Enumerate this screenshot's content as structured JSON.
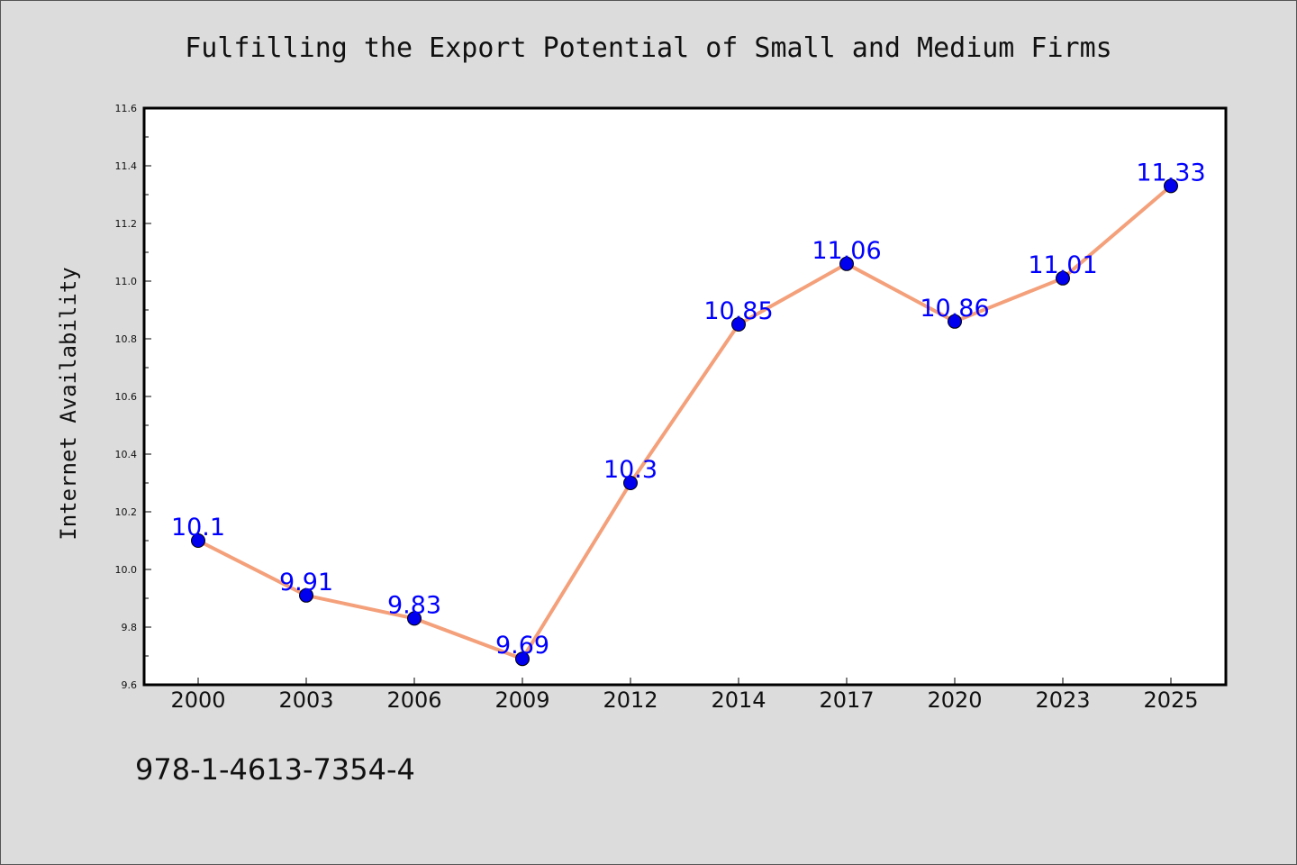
{
  "chart_data": {
    "type": "line",
    "title": "Fulfilling the Export Potential of Small and Medium Firms",
    "ylabel": "Internet Availability",
    "xlabel": "",
    "categories": [
      "2000",
      "2003",
      "2006",
      "2009",
      "2012",
      "2014",
      "2017",
      "2020",
      "2023",
      "2025"
    ],
    "series": [
      {
        "values": [
          10.1,
          9.91,
          9.83,
          9.69,
          10.3,
          10.85,
          11.06,
          10.86,
          11.01,
          11.33
        ]
      }
    ],
    "data_labels": [
      "10.1",
      "9.91",
      "9.83",
      "9.69",
      "10.3",
      "10.85",
      "11.06",
      "10.86",
      "11.01",
      "11.33"
    ],
    "ylim": [
      9.6,
      11.6
    ],
    "yticks": [
      "9.6",
      "9.8",
      "10.0",
      "10.2",
      "10.4",
      "10.6",
      "10.8",
      "11.0",
      "11.2",
      "11.4",
      "11.6"
    ],
    "grid": false,
    "legend": "none",
    "colors": {
      "line": "#f4a07a",
      "marker": "#0000ee",
      "label": "#0000ff",
      "background": "#dcdcdc",
      "plot_area": "#ffffff"
    }
  },
  "footer": {
    "isbn": "978-1-4613-7354-4"
  }
}
